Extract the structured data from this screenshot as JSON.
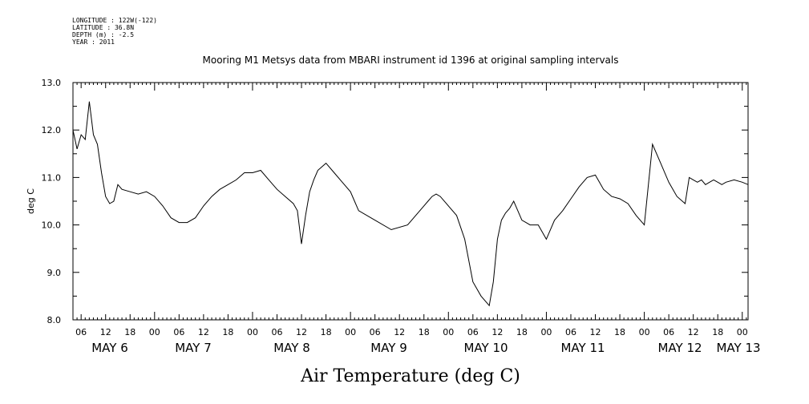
{
  "header": {
    "longitude": "LONGITUDE : 122W(-122)",
    "latitude": "LATITUDE : 36.8N",
    "depth": "DEPTH (m) : -2.5",
    "year": "YEAR : 2011"
  },
  "chart_data": {
    "type": "line",
    "title": "Mooring M1 Metsys data from MBARI instrument id 1396 at original sampling intervals",
    "xlabel": "Air Temperature (deg C)",
    "ylabel": "deg C",
    "ylim": [
      8.0,
      13.0
    ],
    "yticks": [
      "8.0",
      "9.0",
      "10.0",
      "11.0",
      "12.0",
      "13.0"
    ],
    "xlim_hours": [
      4,
      142
    ],
    "hour_ticks": [
      "06",
      "12",
      "18",
      "00",
      "06",
      "12",
      "18",
      "00",
      "06",
      "12",
      "18",
      "00",
      "06",
      "12",
      "18",
      "00",
      "06",
      "12",
      "18",
      "00",
      "06",
      "12",
      "18",
      "00",
      "06",
      "12",
      "18",
      "00",
      "06",
      "12",
      "18",
      "00"
    ],
    "day_labels": [
      "MAY  6",
      "MAY  7",
      "MAY  8",
      "MAY  9",
      "MAY 10",
      "MAY 11",
      "MAY 12",
      "MAY 13"
    ],
    "grid": false,
    "series": [
      {
        "name": "",
        "x": [
          "May 6 04:00",
          "May 6 05:00",
          "May 6 06:00",
          "May 6 07:00",
          "May 6 08:00",
          "May 6 09:00",
          "May 6 10:00",
          "May 6 11:00",
          "May 6 12:00",
          "May 6 13:00",
          "May 6 14:00",
          "May 6 15:00",
          "May 6 16:00",
          "May 6 18:00",
          "May 6 20:00",
          "May 6 22:00",
          "May 7 00:00",
          "May 7 02:00",
          "May 7 04:00",
          "May 7 06:00",
          "May 7 08:00",
          "May 7 10:00",
          "May 7 12:00",
          "May 7 14:00",
          "May 7 16:00",
          "May 7 18:00",
          "May 7 20:00",
          "May 7 22:00",
          "May 8 00:00",
          "May 8 02:00",
          "May 8 04:00",
          "May 8 06:00",
          "May 8 08:00",
          "May 8 10:00",
          "May 8 11:00",
          "May 8 12:00",
          "May 8 13:00",
          "May 8 14:00",
          "May 8 15:00",
          "May 8 16:00",
          "May 8 18:00",
          "May 8 20:00",
          "May 8 22:00",
          "May 9 00:00",
          "May 9 01:00",
          "May 9 02:00",
          "May 9 06:00",
          "May 9 10:00",
          "May 9 14:00",
          "May 9 18:00",
          "May 9 19:00",
          "May 9 20:00",
          "May 9 21:00",
          "May 9 22:00",
          "May 10 00:00",
          "May 10 02:00",
          "May 10 04:00",
          "May 10 06:00",
          "May 10 08:00",
          "May 10 10:00",
          "May 10 11:00",
          "May 10 12:00",
          "May 10 13:00",
          "May 10 14:00",
          "May 10 15:00",
          "May 10 16:00",
          "May 10 17:00",
          "May 10 18:00",
          "May 10 19:00",
          "May 10 20:00",
          "May 10 22:00",
          "May 11 00:00",
          "May 11 02:00",
          "May 11 04:00",
          "May 11 06:00",
          "May 11 08:00",
          "May 11 10:00",
          "May 11 12:00",
          "May 11 13:00",
          "May 11 14:00",
          "May 11 16:00",
          "May 11 18:00",
          "May 11 20:00",
          "May 11 22:00",
          "May 12 00:00",
          "May 12 02:00",
          "May 12 04:00",
          "May 12 06:00",
          "May 12 08:00",
          "May 12 10:00",
          "May 12 11:00",
          "May 12 12:00",
          "May 12 13:00",
          "May 12 14:00",
          "May 12 15:00",
          "May 12 16:00",
          "May 12 17:00",
          "May 12 18:00",
          "May 12 19:00",
          "May 12 20:00",
          "May 12 22:00",
          "May 13 00:00",
          "May 13 02:00",
          "May 13 04:00",
          "May 13 06:00"
        ],
        "t": [
          4,
          5,
          6,
          7,
          8,
          9,
          10,
          11,
          12,
          13,
          14,
          15,
          16,
          18,
          20,
          22,
          24,
          26,
          28,
          30,
          32,
          34,
          36,
          38,
          40,
          42,
          44,
          46,
          48,
          50,
          52,
          54,
          56,
          58,
          59,
          60,
          61,
          62,
          63,
          64,
          66,
          68,
          70,
          72,
          73,
          74,
          78,
          82,
          86,
          90,
          91,
          92,
          93,
          94,
          96,
          98,
          100,
          102,
          104,
          106,
          107,
          108,
          109,
          110,
          111,
          112,
          113,
          114,
          115,
          116,
          118,
          120,
          122,
          124,
          126,
          128,
          130,
          132,
          133,
          134,
          136,
          138,
          140,
          142,
          144,
          146,
          148,
          150,
          152,
          154,
          155,
          156,
          157,
          158,
          159,
          160,
          161,
          162,
          163,
          164,
          166,
          168,
          170,
          172,
          174
        ],
        "values": [
          12.0,
          11.6,
          11.9,
          11.8,
          12.6,
          11.9,
          11.7,
          11.1,
          10.6,
          10.45,
          10.5,
          10.85,
          10.75,
          10.7,
          10.65,
          10.7,
          10.6,
          10.4,
          10.15,
          10.05,
          10.05,
          10.15,
          10.4,
          10.6,
          10.75,
          10.85,
          10.95,
          11.1,
          11.1,
          11.15,
          10.95,
          10.75,
          10.6,
          10.45,
          10.3,
          9.6,
          10.2,
          10.7,
          10.95,
          11.15,
          11.3,
          11.1,
          10.9,
          10.7,
          10.5,
          10.3,
          10.1,
          9.9,
          10.0,
          10.4,
          10.5,
          10.6,
          10.65,
          10.6,
          10.4,
          10.2,
          9.7,
          8.8,
          8.5,
          8.3,
          8.8,
          9.7,
          10.1,
          10.25,
          10.35,
          10.5,
          10.3,
          10.1,
          10.05,
          10.0,
          10.0,
          9.7,
          10.1,
          10.3,
          10.55,
          10.8,
          11.0,
          11.05,
          10.9,
          10.75,
          10.6,
          10.55,
          10.45,
          10.2,
          10.0,
          11.7,
          11.3,
          10.9,
          10.6,
          10.45,
          11.0,
          10.95,
          10.9,
          10.95,
          10.85,
          10.9,
          10.95,
          10.9,
          10.85,
          10.9,
          10.95,
          10.9,
          10.85,
          10.9,
          10.95
        ]
      }
    ]
  }
}
